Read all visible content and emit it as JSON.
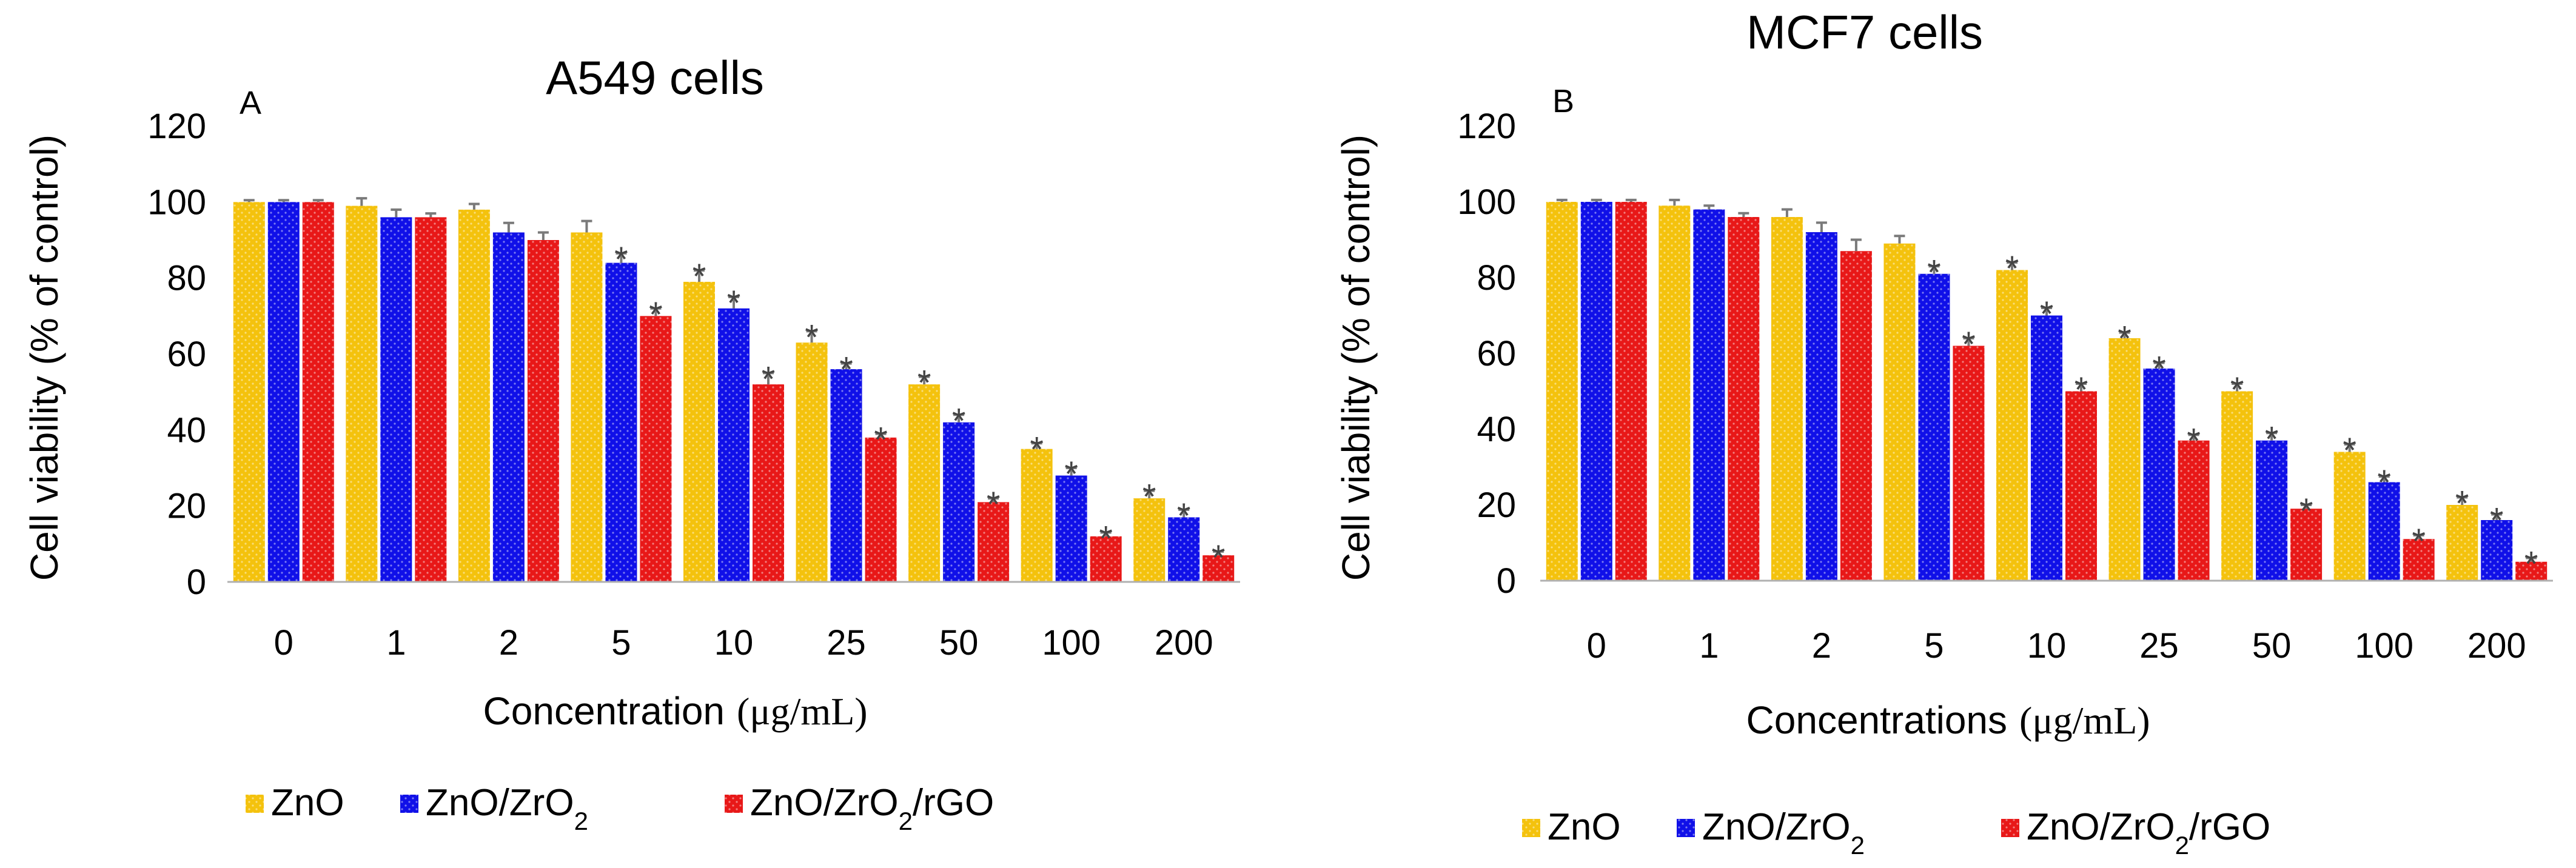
{
  "colors": {
    "ZnO": "#f4c20d",
    "ZnO/ZrO2": "#1010e8",
    "ZnO/ZrO2/rGO": "#e81818"
  },
  "chart_data": [
    {
      "type": "bar",
      "panel": "A",
      "title": "A549 cells",
      "xlabel": "Concentration",
      "xlabel_unit": "(μg/mL)",
      "ylabel": "Cell viability (% of control)",
      "ylim": [
        0,
        120
      ],
      "yticks": [
        "0",
        "20",
        "40",
        "60",
        "80",
        "100",
        "120"
      ],
      "categories": [
        "0",
        "1",
        "2",
        "5",
        "10",
        "25",
        "50",
        "100",
        "200"
      ],
      "legend": [
        {
          "label": "ZnO",
          "sub": ""
        },
        {
          "label": "ZnO/ZrO",
          "sub": "2"
        },
        {
          "label": "ZnO/ZrO",
          "sub": "2",
          "suffix": "/rGO"
        }
      ],
      "marker": "*",
      "series": [
        {
          "name": "ZnO",
          "values": [
            100,
            99,
            98,
            92,
            79,
            63,
            52,
            35,
            22
          ],
          "errors": [
            0.5,
            2,
            1.5,
            3,
            3,
            3,
            2,
            1.5,
            2
          ],
          "significant": [
            false,
            false,
            false,
            false,
            true,
            true,
            true,
            true,
            true
          ]
        },
        {
          "name": "ZnO/ZrO2",
          "values": [
            100,
            96,
            92,
            84,
            72,
            56,
            42,
            28,
            17
          ],
          "errors": [
            0.5,
            2,
            2.5,
            2.5,
            3,
            1.5,
            2,
            2,
            2
          ],
          "significant": [
            false,
            false,
            false,
            true,
            true,
            true,
            true,
            true,
            true
          ]
        },
        {
          "name": "ZnO/ZrO2/rGO",
          "values": [
            100,
            96,
            90,
            70,
            52,
            38,
            21,
            12,
            7
          ],
          "errors": [
            0.5,
            1,
            2,
            2,
            3,
            1,
            1,
            1,
            1
          ],
          "significant": [
            false,
            false,
            false,
            true,
            true,
            true,
            true,
            true,
            true
          ]
        }
      ]
    },
    {
      "type": "bar",
      "panel": "B",
      "title": "MCF7 cells",
      "xlabel": "Concentrations",
      "xlabel_unit": "(μg/mL)",
      "ylabel": "Cell viability (% of control)",
      "ylim": [
        0,
        120
      ],
      "yticks": [
        "0",
        "20",
        "40",
        "60",
        "80",
        "100",
        "120"
      ],
      "categories": [
        "0",
        "1",
        "2",
        "5",
        "10",
        "25",
        "50",
        "100",
        "200"
      ],
      "legend": [
        {
          "label": "ZnO",
          "sub": ""
        },
        {
          "label": "ZnO/ZrO",
          "sub": "2"
        },
        {
          "label": "ZnO/ZrO",
          "sub": "2",
          "suffix": "/rGO"
        }
      ],
      "marker": "*",
      "series": [
        {
          "name": "ZnO",
          "values": [
            100,
            99,
            96,
            89,
            82,
            64,
            50,
            34,
            20
          ],
          "errors": [
            0.5,
            1.5,
            2,
            2,
            2,
            1.5,
            2,
            2,
            2
          ],
          "significant": [
            false,
            false,
            false,
            false,
            true,
            true,
            true,
            true,
            true
          ]
        },
        {
          "name": "ZnO/ZrO2",
          "values": [
            100,
            98,
            92,
            81,
            70,
            56,
            37,
            26,
            16
          ],
          "errors": [
            0.5,
            1,
            2.5,
            2,
            2,
            1.5,
            2,
            1.5,
            1.5
          ],
          "significant": [
            false,
            false,
            false,
            true,
            true,
            true,
            true,
            true,
            true
          ]
        },
        {
          "name": "ZnO/ZrO2/rGO",
          "values": [
            100,
            96,
            87,
            62,
            50,
            37,
            19,
            11,
            5
          ],
          "errors": [
            0.5,
            1,
            3,
            2,
            2,
            1.5,
            1,
            1,
            1
          ],
          "significant": [
            false,
            false,
            false,
            true,
            true,
            true,
            true,
            true,
            true
          ]
        }
      ]
    }
  ]
}
